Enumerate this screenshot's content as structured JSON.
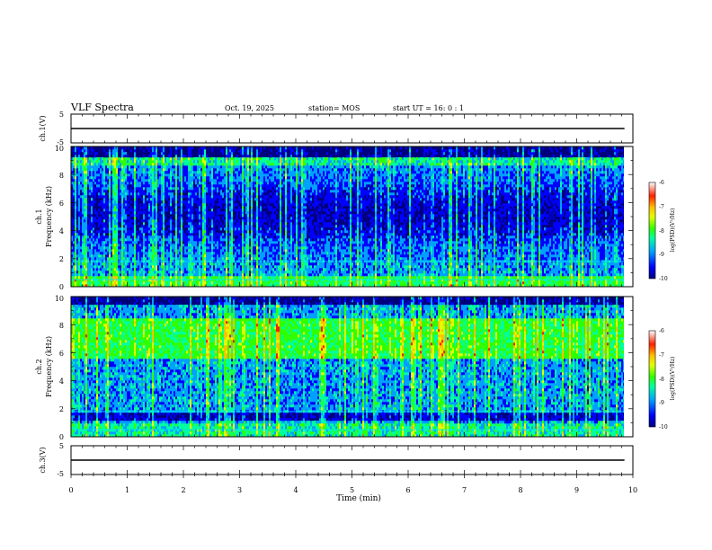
{
  "header": {
    "title": "VLF Spectra",
    "date": "Oct. 19, 2025",
    "station": "station= MOS",
    "start": "start UT =  16: 0  : 1"
  },
  "chart_data": [
    {
      "type": "line",
      "panel": "ch1-waveform",
      "ylabel": "ch.1(V)",
      "ylim": [
        -5,
        5
      ],
      "yticks": [
        "5",
        "-5"
      ],
      "xlim": [
        0,
        10
      ],
      "trace_level": 0,
      "trace_end_min": 9.85
    },
    {
      "type": "heatmap",
      "panel": "ch1-spectrogram",
      "ylabel": "ch.1",
      "ylabel2": "Frequency (kHz)",
      "ylim": [
        0,
        10
      ],
      "yticks": [
        "0",
        "2",
        "4",
        "6",
        "8",
        "10"
      ],
      "xlim": [
        0,
        10
      ],
      "data_end_min": 9.85,
      "colorbar": {
        "label": "log(PSD)(V²/Hz)",
        "range": [
          -10,
          -6
        ],
        "ticks": [
          "-6",
          "-7",
          "-8",
          "-9",
          "-10"
        ]
      }
    },
    {
      "type": "heatmap",
      "panel": "ch2-spectrogram",
      "ylabel": "ch.2",
      "ylabel2": "Frequency (kHz)",
      "ylim": [
        0,
        10
      ],
      "yticks": [
        "0",
        "2",
        "4",
        "6",
        "8",
        "10"
      ],
      "xlim": [
        0,
        10
      ],
      "data_end_min": 9.85,
      "colorbar": {
        "label": "log(PSD)(V²/Hz)",
        "range": [
          -10,
          -6
        ],
        "ticks": [
          "-6",
          "-7",
          "-8",
          "-9",
          "-10"
        ]
      }
    },
    {
      "type": "line",
      "panel": "ch3-waveform",
      "ylabel": "ch.3(V)",
      "ylim": [
        -5,
        5
      ],
      "yticks": [
        "5",
        "-5"
      ],
      "xlim": [
        0,
        10
      ],
      "trace_level": 0,
      "trace_end_min": 9.85
    }
  ],
  "xaxis": {
    "label": "Time (min)",
    "ticks": [
      "0",
      "1",
      "2",
      "3",
      "4",
      "5",
      "6",
      "7",
      "8",
      "9",
      "10"
    ]
  },
  "colors": {
    "scale": [
      "#00007f",
      "#0000ff",
      "#00a0ff",
      "#00ffa0",
      "#30ff00",
      "#e0ff00",
      "#ffc000",
      "#ff2000",
      "#ffffff"
    ]
  }
}
